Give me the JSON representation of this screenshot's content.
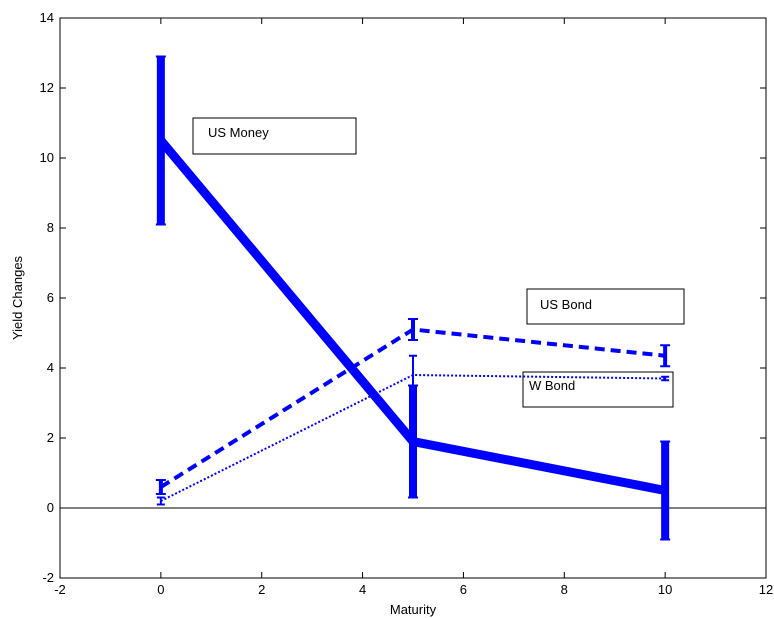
{
  "chart_data": {
    "type": "line",
    "xlabel": "Maturity",
    "ylabel": "Yield Changes",
    "xlim": [
      -2,
      12
    ],
    "ylim": [
      -2,
      14
    ],
    "xticks": [
      -2,
      0,
      2,
      4,
      6,
      8,
      10,
      12
    ],
    "yticks": [
      -2,
      0,
      2,
      4,
      6,
      8,
      10,
      12,
      14
    ],
    "grid": false,
    "zero_line": true,
    "series": [
      {
        "name": "US Money",
        "style": "solid-thick",
        "color": "#0000ff",
        "x": [
          0,
          5,
          10
        ],
        "y": [
          10.5,
          1.9,
          0.5
        ],
        "err_low": [
          8.1,
          0.3,
          -0.9
        ],
        "err_high": [
          12.9,
          3.5,
          1.9
        ]
      },
      {
        "name": "US Bond",
        "style": "dashed",
        "color": "#0000ff",
        "x": [
          0,
          5,
          10
        ],
        "y": [
          0.6,
          5.1,
          4.35
        ],
        "err_low": [
          0.4,
          4.8,
          4.05
        ],
        "err_high": [
          0.8,
          5.4,
          4.65
        ]
      },
      {
        "name": "W Bond",
        "style": "dotted",
        "color": "#0000ff",
        "x": [
          0,
          5,
          10
        ],
        "y": [
          0.2,
          3.8,
          3.7
        ],
        "err_low": [
          0.1,
          3.3,
          3.65
        ],
        "err_high": [
          0.3,
          4.35,
          3.75
        ]
      }
    ],
    "annotations": [
      "US Money",
      "US Bond",
      "W Bond"
    ]
  }
}
